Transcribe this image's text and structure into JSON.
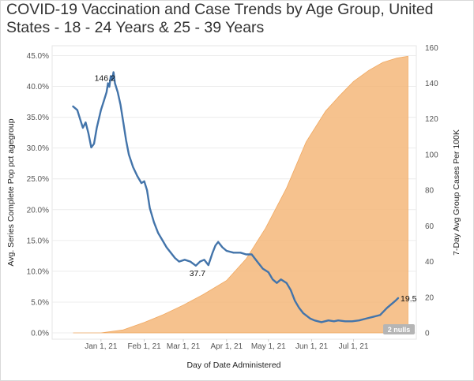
{
  "chart_data": {
    "type": "line",
    "title": "COVID-19 Vaccination and Case Trends by Age Group, United States - 18 - 24 Years & 25 - 39 Years",
    "xlabel": "Day of Date Administered",
    "ylabel_left": "Avg. Series Complete Pop pct agegroup",
    "ylabel_right": "7-Day Avg Group Cases Per 100K",
    "x_ticks": [
      "Jan 1, 21",
      "Feb 1, 21",
      "Mar 1, 21",
      "Apr 1, 21",
      "May 1, 21",
      "Jun 1, 21",
      "Jul 1, 21"
    ],
    "y_left_ticks": [
      "0.0%",
      "5.0%",
      "10.0%",
      "15.0%",
      "20.0%",
      "25.0%",
      "30.0%",
      "35.0%",
      "40.0%",
      "45.0%"
    ],
    "y_right_ticks": [
      "0",
      "20",
      "40",
      "60",
      "80",
      "100",
      "120",
      "140",
      "160"
    ],
    "x_domain_days": [
      -35,
      226
    ],
    "y_left_range": [
      0,
      46.6
    ],
    "y_right_range": [
      0,
      161
    ],
    "grid": true,
    "series": [
      {
        "name": "Avg. Series Complete Pop pct agegroup",
        "axis": "left",
        "style": "area",
        "color": "#f5b77a",
        "points": [
          [
            -20,
            0
          ],
          [
            0,
            0
          ],
          [
            16,
            0.5
          ],
          [
            31,
            1.7
          ],
          [
            45,
            3.0
          ],
          [
            59,
            4.5
          ],
          [
            73,
            6.2
          ],
          [
            90,
            8.5
          ],
          [
            104,
            12.0
          ],
          [
            118,
            17.0
          ],
          [
            133,
            23.5
          ],
          [
            147,
            31.0
          ],
          [
            161,
            36.0
          ],
          [
            171,
            38.5
          ],
          [
            181,
            40.8
          ],
          [
            192,
            42.6
          ],
          [
            202,
            43.9
          ],
          [
            212,
            44.6
          ],
          [
            220,
            44.9
          ]
        ]
      },
      {
        "name": "7-Day Avg Group Cases Per 100K",
        "axis": "right",
        "style": "line",
        "color": "#4374aa",
        "points": [
          [
            -20,
            127
          ],
          [
            -17,
            125
          ],
          [
            -15,
            120
          ],
          [
            -13,
            115
          ],
          [
            -11,
            118
          ],
          [
            -9,
            112
          ],
          [
            -7,
            104
          ],
          [
            -5,
            106
          ],
          [
            -3,
            115
          ],
          [
            0,
            125
          ],
          [
            2,
            130
          ],
          [
            4,
            135
          ],
          [
            5,
            140
          ],
          [
            6,
            138
          ],
          [
            7,
            144
          ],
          [
            8,
            142
          ],
          [
            9,
            146.2
          ],
          [
            10,
            140
          ],
          [
            12,
            135
          ],
          [
            14,
            128
          ],
          [
            16,
            118
          ],
          [
            18,
            108
          ],
          [
            20,
            100
          ],
          [
            23,
            93
          ],
          [
            26,
            88
          ],
          [
            29,
            84
          ],
          [
            31,
            85
          ],
          [
            33,
            80
          ],
          [
            35,
            70
          ],
          [
            38,
            62
          ],
          [
            41,
            56
          ],
          [
            44,
            52
          ],
          [
            47,
            48
          ],
          [
            50,
            45
          ],
          [
            53,
            42
          ],
          [
            56,
            40
          ],
          [
            60,
            41
          ],
          [
            64,
            40
          ],
          [
            68,
            37.7
          ],
          [
            71,
            40
          ],
          [
            74,
            41
          ],
          [
            77,
            38
          ],
          [
            80,
            45
          ],
          [
            82,
            49
          ],
          [
            84,
            51
          ],
          [
            87,
            48
          ],
          [
            90,
            46
          ],
          [
            95,
            45
          ],
          [
            100,
            45
          ],
          [
            104,
            44
          ],
          [
            108,
            44
          ],
          [
            112,
            40
          ],
          [
            116,
            36
          ],
          [
            120,
            34
          ],
          [
            123,
            30
          ],
          [
            126,
            28
          ],
          [
            129,
            30
          ],
          [
            133,
            28
          ],
          [
            136,
            24
          ],
          [
            139,
            18
          ],
          [
            142,
            14
          ],
          [
            145,
            11
          ],
          [
            150,
            8
          ],
          [
            153,
            7
          ],
          [
            158,
            6
          ],
          [
            163,
            7
          ],
          [
            167,
            6.5
          ],
          [
            170,
            7
          ],
          [
            175,
            6.5
          ],
          [
            180,
            6.5
          ],
          [
            185,
            7
          ],
          [
            190,
            8
          ],
          [
            195,
            9
          ],
          [
            200,
            10
          ],
          [
            205,
            14
          ],
          [
            208,
            16
          ],
          [
            211,
            18
          ],
          [
            213,
            19.5
          ]
        ]
      }
    ],
    "annotations": [
      {
        "text": "146.2",
        "x": 9,
        "y": 146.2,
        "axis": "right",
        "pos": "above-left"
      },
      {
        "text": "37.7",
        "x": 68,
        "y": 37.7,
        "axis": "right",
        "pos": "below"
      },
      {
        "text": "19.5",
        "x": 213,
        "y": 19.5,
        "axis": "right",
        "pos": "right"
      }
    ],
    "null_indicator": "2 nulls"
  }
}
